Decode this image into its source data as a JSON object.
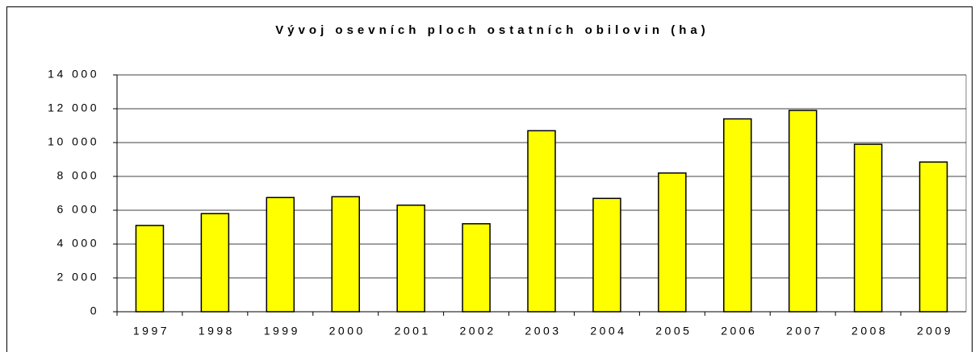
{
  "chart_data": {
    "type": "bar",
    "title": "Vývoj osevních ploch ostatních obilovin (ha)",
    "categories": [
      "1997",
      "1998",
      "1999",
      "2000",
      "2001",
      "2002",
      "2003",
      "2004",
      "2005",
      "2006",
      "2007",
      "2008",
      "2009"
    ],
    "values": [
      5100,
      5800,
      6750,
      6800,
      6300,
      5200,
      10700,
      6700,
      8200,
      11400,
      11900,
      9900,
      8850
    ],
    "color": "#ffff00",
    "ylim": [
      0,
      14000
    ],
    "yticks": [
      0,
      {
        "value": 2000,
        "label": "2 000"
      },
      {
        "value": 4000,
        "label": "4 000"
      },
      {
        "value": 6000,
        "label": "6 000"
      },
      {
        "value": 8000,
        "label": "8 000"
      },
      {
        "value": 10000,
        "label": "10 000"
      },
      {
        "value": 12000,
        "label": "12 000"
      },
      {
        "value": 14000,
        "label": "14 000"
      }
    ],
    "grid": true
  }
}
